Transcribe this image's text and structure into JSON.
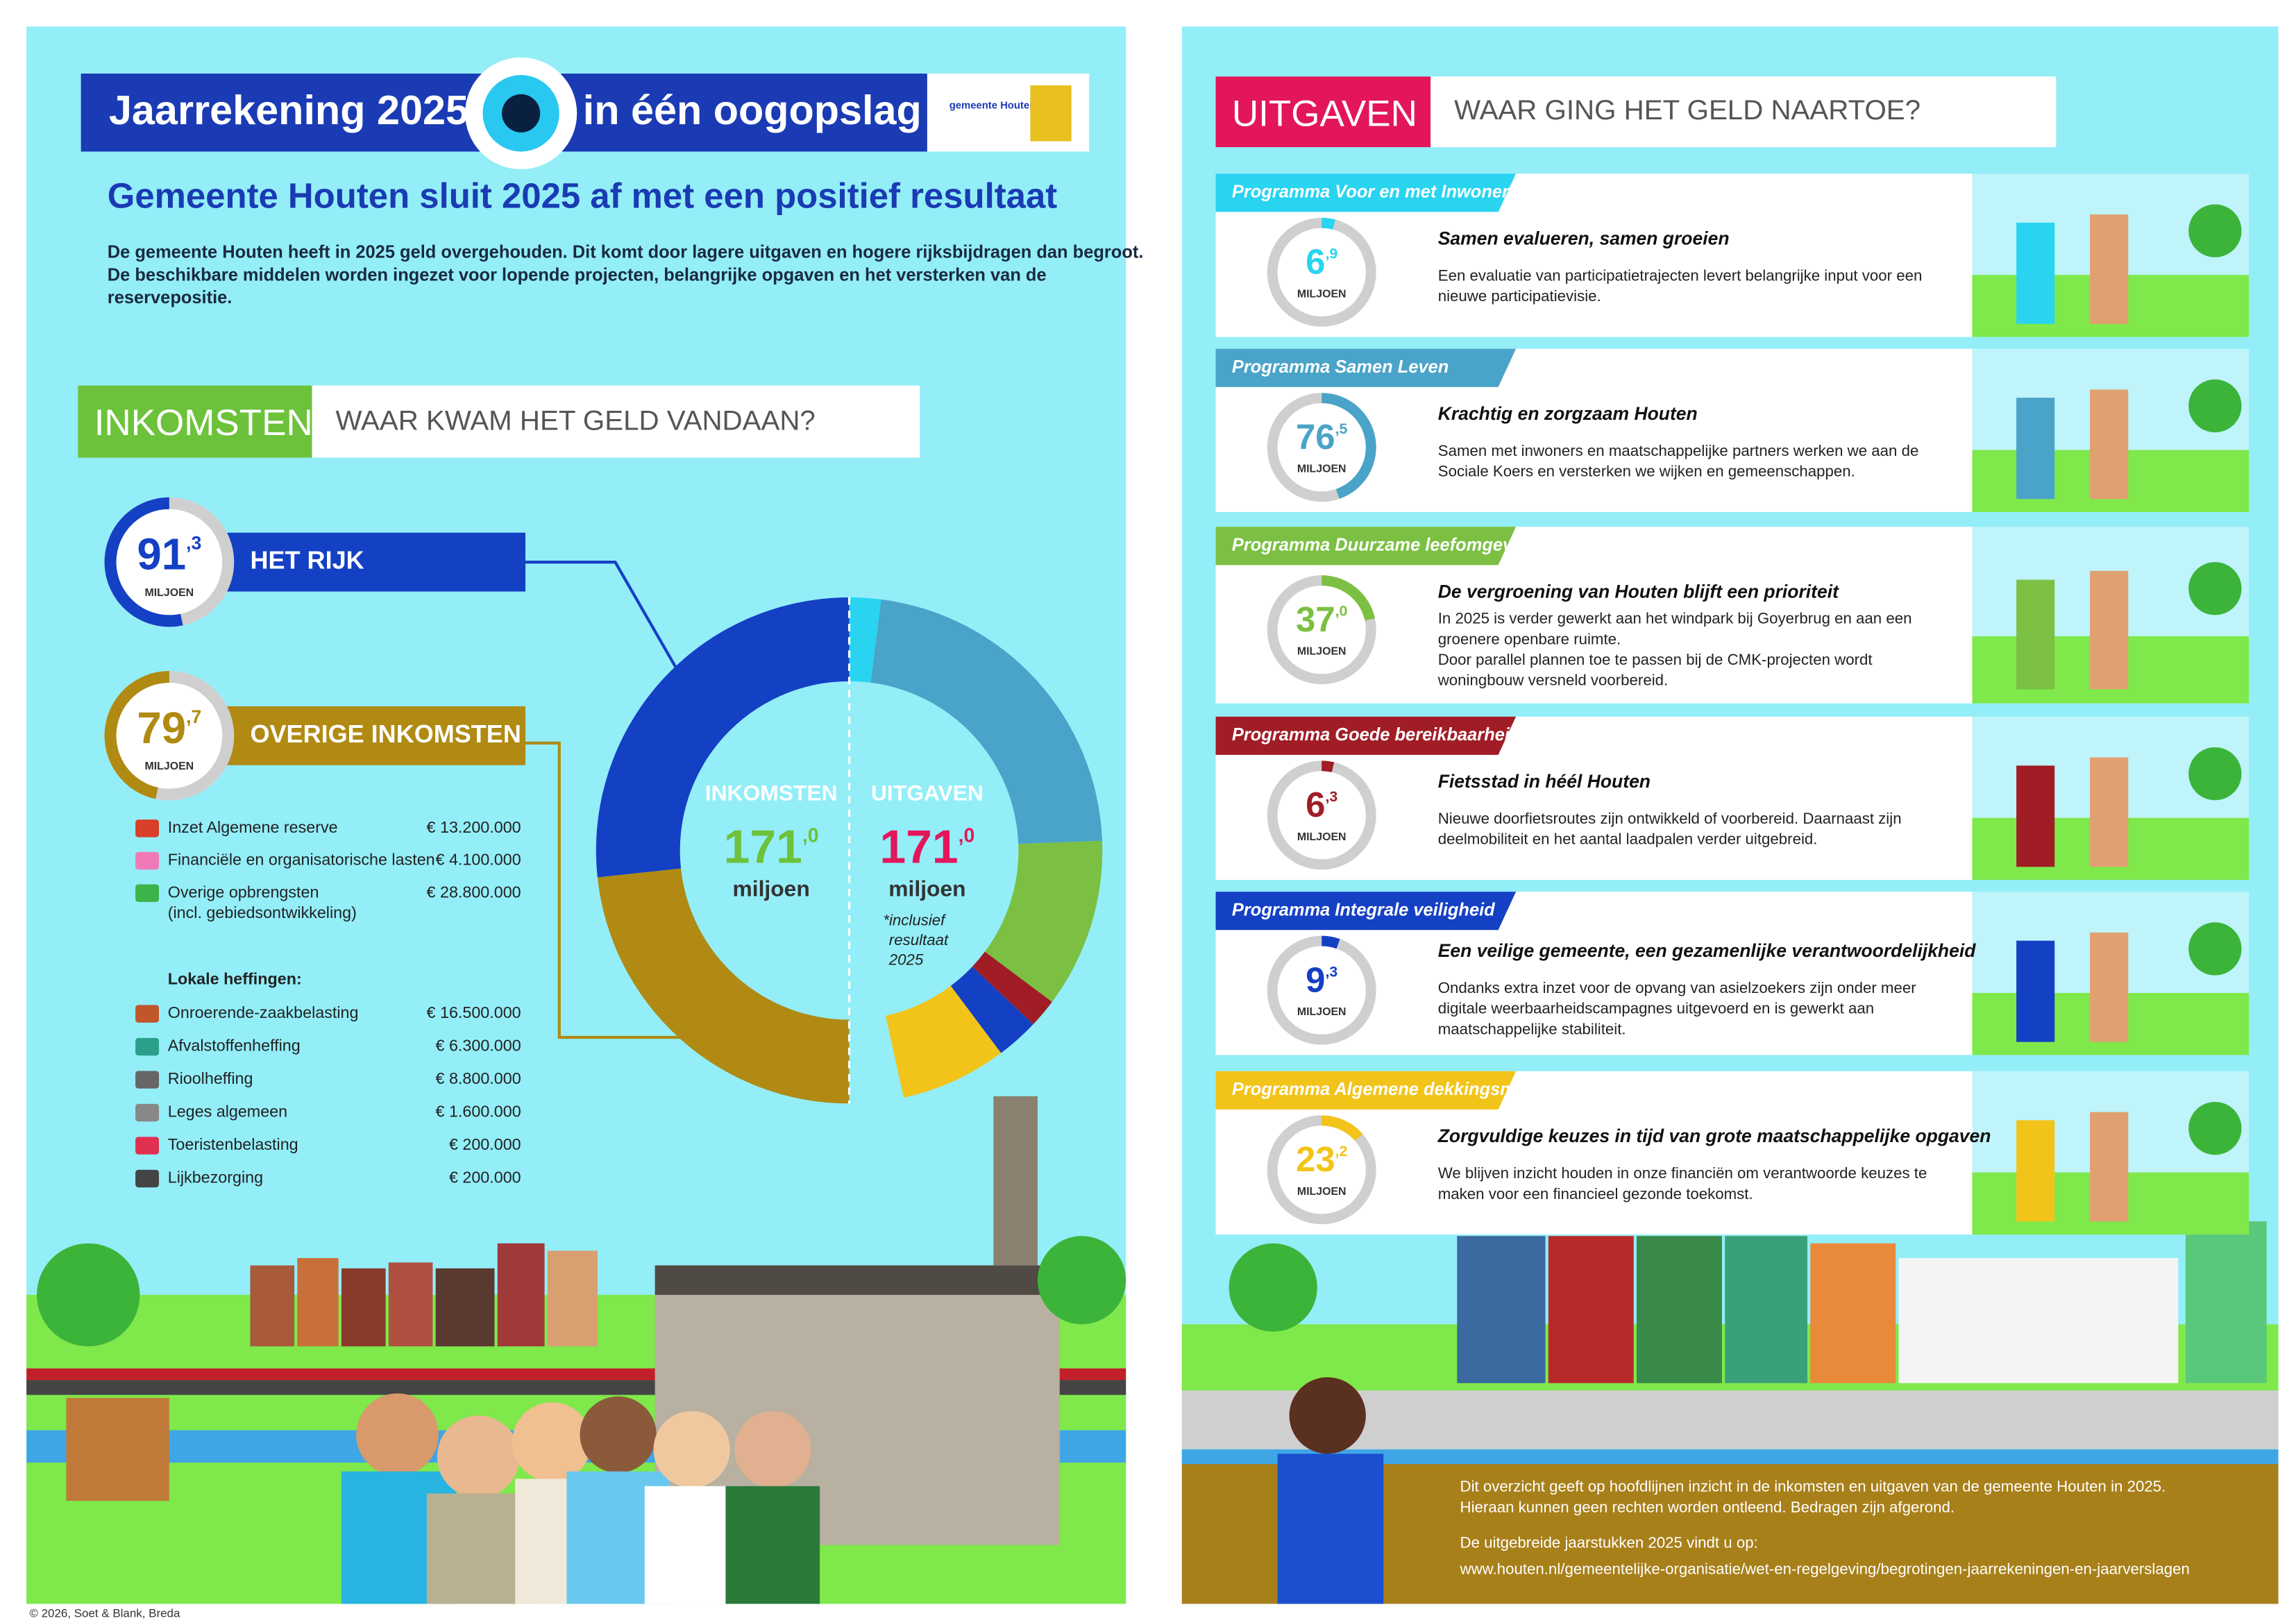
{
  "header": {
    "title_left": "Jaarrekening 2025",
    "title_right": "in één oogopslag",
    "logo": "gemeente Houten",
    "subtitle": "Gemeente Houten sluit 2025 af met een positief resultaat",
    "intro": [
      "De gemeente Houten heeft in 2025 geld overgehouden. Dit komt door lagere uitgaven en  hogere rijksbijdragen dan begroot.",
      "De beschikbare middelen worden ingezet voor lopende projecten, belangrijke opgaven en het versterken van de",
      "reservepositie."
    ]
  },
  "inkomsten": {
    "label": "INKOMSTEN",
    "question": "WAAR KWAM HET GELD VANDAAN?",
    "unit": "MILJOEN",
    "sources": [
      {
        "name": "HET RIJK",
        "amount": {
          "value": 91.3,
          "label": "91,3"
        },
        "color": "#1440c4"
      },
      {
        "name": "OVERIGE INKOMSTEN",
        "amount": {
          "value": 79.7,
          "label": "79,7"
        },
        "color": "#b08a12"
      }
    ],
    "items": [
      {
        "label": "Inzet Algemene reserve",
        "amount": "€ 13.200.000",
        "color": "#d8402a"
      },
      {
        "label": "Financiële en organisatorische lasten",
        "amount": "€ 4.100.000",
        "color": "#f07ab8"
      },
      {
        "label": "Overige opbrengsten",
        "sub": "(incl. gebiedsontwikkeling)",
        "amount": "€ 28.800.000",
        "color": "#3cb44a"
      }
    ],
    "heffingen_title": "Lokale heffingen:",
    "heffingen": [
      {
        "label": "Onroerende-zaakbelasting",
        "amount": "€ 16.500.000",
        "color": "#c0562a"
      },
      {
        "label": "Afvalstoffenheffing",
        "amount": "€ 6.300.000",
        "color": "#2aa08a"
      },
      {
        "label": "Rioolheffing",
        "amount": "€ 8.800.000",
        "color": "#666666"
      },
      {
        "label": "Leges algemeen",
        "amount": "€ 1.600.000",
        "color": "#888888"
      },
      {
        "label": "Toeristenbelasting",
        "amount": "€ 200.000",
        "color": "#e03050"
      },
      {
        "label": "Lijkbezorging",
        "amount": "€ 200.000",
        "color": "#444444"
      }
    ]
  },
  "donut": {
    "type": "donut",
    "left": {
      "title": "INKOMSTEN",
      "total": {
        "value": 171.0,
        "label": "171,0"
      },
      "unit": "miljoen",
      "color": "#6cc23a"
    },
    "right": {
      "title": "UITGAVEN",
      "total": {
        "value": 171.0,
        "label": "171,0"
      },
      "unit": "miljoen",
      "color": "#e3165b",
      "note": [
        "*inclusief",
        "resultaat",
        "2025"
      ]
    }
  },
  "uitgaven": {
    "label": "UITGAVEN",
    "question": "WAAR GING HET GELD NAARTOE?",
    "unit": "MILJOEN",
    "programs": [
      {
        "name": "Programma Voor en met Inwoners",
        "color": "#29d4f0",
        "amount": {
          "value": 6.9,
          "label": "6,9"
        },
        "title": "Samen evalueren, samen groeien",
        "text": [
          "Een evaluatie van participatietrajecten levert belangrijke input voor een",
          "nieuwe participatievisie."
        ]
      },
      {
        "name": "Programma Samen Leven",
        "color": "#4aa3c8",
        "amount": {
          "value": 76.5,
          "label": "76,5"
        },
        "title": "Krachtig en zorgzaam Houten",
        "text": [
          "Samen met inwoners en maatschappelijke partners werken we aan de",
          "Sociale Koers en versterken we wijken en gemeenschappen."
        ]
      },
      {
        "name": "Programma Duurzame leefomgeving",
        "color": "#7bc043",
        "amount": {
          "value": 37.0,
          "label": "37,0"
        },
        "title": "De vergroening van Houten blijft een prioriteit",
        "text": [
          "In 2025 is verder gewerkt aan het windpark bij Goyerbrug en aan een",
          "groenere openbare ruimte.",
          "Door parallel plannen toe te passen bij de CMK-projecten wordt",
          "woningbouw versneld voorbereid."
        ]
      },
      {
        "name": "Programma Goede bereikbaarheid",
        "color": "#a01d26",
        "amount": {
          "value": 6.3,
          "label": "6,3"
        },
        "title": "Fietsstad in héél Houten",
        "text": [
          "Nieuwe doorfietsroutes zijn ontwikkeld of voorbereid. Daarnaast zijn",
          "deelmobiliteit en het aantal laadpalen verder uitgebreid."
        ]
      },
      {
        "name": "Programma Integrale veiligheid",
        "color": "#1440c4",
        "amount": {
          "value": 9.3,
          "label": "9,3"
        },
        "title": "Een veilige gemeente, een gezamenlijke verantwoordelijkheid",
        "text": [
          "Ondanks extra inzet voor de opvang van asielzoekers zijn onder meer",
          "digitale weerbaarheidscampagnes uitgevoerd en is gewerkt aan",
          "maatschappelijke stabiliteit."
        ]
      },
      {
        "name": "Programma Algemene dekkingsmiddelen",
        "color": "#f2c41a",
        "amount": {
          "value": 23.2,
          "label": "23,2"
        },
        "title": "Zorgvuldige keuzes in tijd van grote maatschappelijke opgaven",
        "text": [
          "We blijven inzicht houden in onze financiën om verantwoorde keuzes te",
          "maken voor een financieel gezonde toekomst."
        ]
      }
    ],
    "disclaimer": [
      "Dit overzicht geeft op hoofdlijnen inzicht in de inkomsten en uitgaven van de gemeente Houten in 2025.",
      "Hieraan kunnen geen rechten worden ontleend. Bedragen zijn afgerond."
    ],
    "link_intro": "De uitgebreide jaarstukken 2025 vindt u op:",
    "link": "www.houten.nl/gemeentelijke-organisatie/wet-en-regelgeving/begrotingen-jaarrekeningen-en-jaarverslagen"
  },
  "footer": "© 2026, Soet & Blank, Breda"
}
